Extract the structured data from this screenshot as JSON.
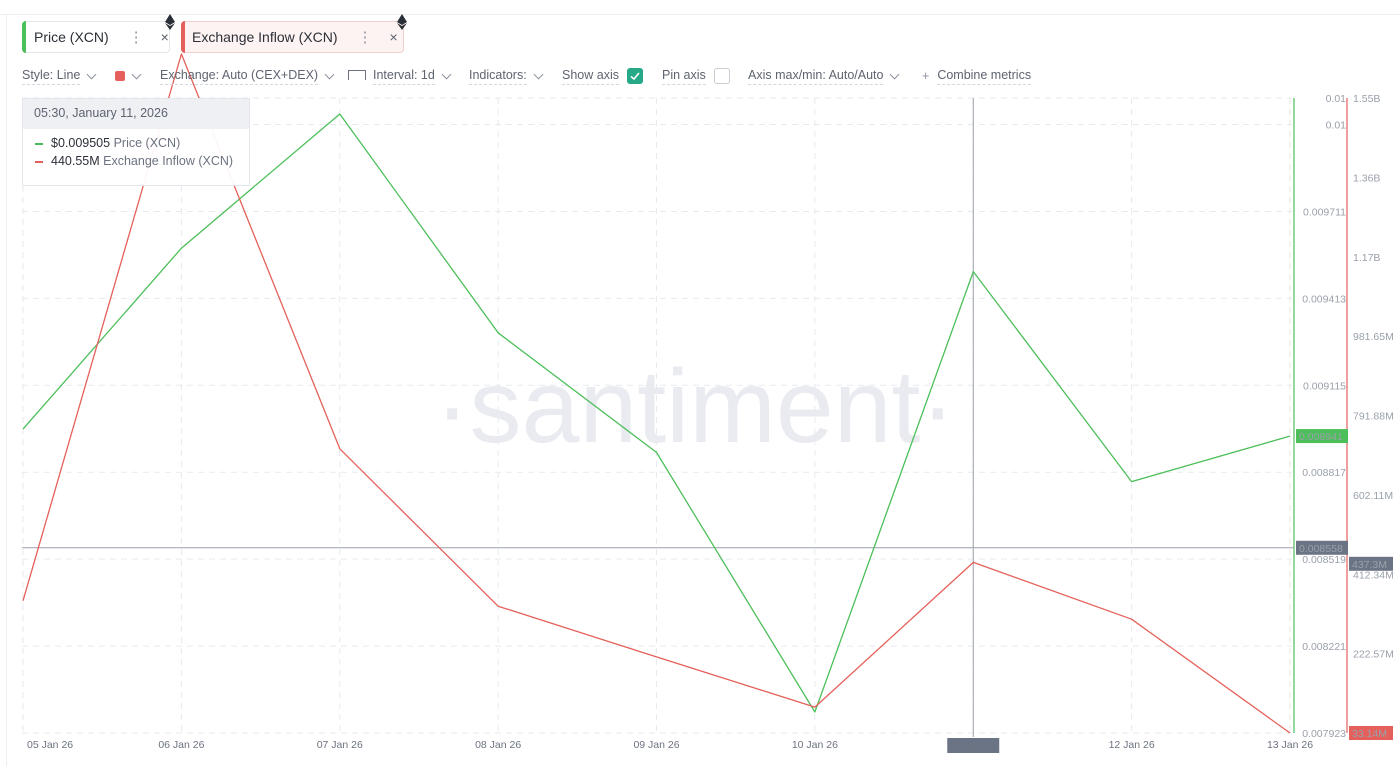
{
  "metric_tabs": [
    {
      "label": "Price (XCN)",
      "color": "#4cbf5a",
      "menu": "⋮",
      "close": "×"
    },
    {
      "label": "Exchange Inflow (XCN)",
      "color": "#e5605a",
      "menu": "⋮",
      "close": "×"
    }
  ],
  "toolbar": {
    "style": "Style: Line",
    "exchange": "Exchange: Auto (CEX+DEX)",
    "interval": "Interval: 1d",
    "indicators": "Indicators:",
    "show_axis": "Show axis",
    "pin_axis": "Pin axis",
    "axis_maxmin": "Axis max/min: Auto/Auto",
    "combine": "Combine metrics",
    "combine_prefix": "+",
    "swatch_color": "#e5605a"
  },
  "tooltip": {
    "date": "05:30, January 11, 2026",
    "rows": [
      {
        "value": "$0.009505",
        "label": "Price (XCN)",
        "color": "#4cbf5a"
      },
      {
        "value": "440.55M",
        "label": "Exchange Inflow (XCN)",
        "color": "#e5605a"
      }
    ]
  },
  "watermark": "·santiment·",
  "chart_data": {
    "type": "line",
    "title": "",
    "xlabel": "",
    "ylabel": "",
    "grid": true,
    "categories": [
      "05 Jan 26",
      "06 Jan 26",
      "07 Jan 26",
      "08 Jan 26",
      "09 Jan 26",
      "10 Jan 26",
      "11 Jan 26",
      "12 Jan 26",
      "13 Jan 26"
    ],
    "series": [
      {
        "name": "Price (XCN)",
        "axis": "left",
        "color": "#4cbf5a",
        "values": [
          0.008965,
          0.009585,
          0.010045,
          0.009295,
          0.008885,
          0.007995,
          0.009505,
          0.008785,
          0.008941
        ]
      },
      {
        "name": "Exchange Inflow (XCN)",
        "axis": "right",
        "color": "#e5605a",
        "values": [
          349000000,
          1655000000,
          712000000,
          336000000,
          215000000,
          95000000,
          440550000,
          305000000,
          33140000
        ]
      }
    ],
    "price_axis": {
      "min": 0.007923,
      "max": 0.0101,
      "ticks": [
        {
          "value": 0.0101,
          "label": "0.01"
        },
        {
          "value": 0.010009,
          "label": "0.01"
        },
        {
          "value": 0.009711,
          "label": "0.009711"
        },
        {
          "value": 0.009413,
          "label": "0.009413"
        },
        {
          "value": 0.009115,
          "label": "0.009115"
        },
        {
          "value": 0.008817,
          "label": "0.008817"
        },
        {
          "value": 0.008519,
          "label": "0.008519"
        },
        {
          "value": 0.008221,
          "label": "0.008221"
        },
        {
          "value": 0.007923,
          "label": "0.007923"
        }
      ]
    },
    "inflow_axis": {
      "min": 33140000,
      "max": 1550000000,
      "ticks": [
        {
          "value": 1550000000,
          "label": "1.55B"
        },
        {
          "value": 1360000000,
          "label": "1.36B"
        },
        {
          "value": 1170000000,
          "label": "1.17B"
        },
        {
          "value": 981650000,
          "label": "981.65M"
        },
        {
          "value": 791880000,
          "label": "791.88M"
        },
        {
          "value": 602110000,
          "label": "602.11M"
        },
        {
          "value": 412340000,
          "label": "412.34M"
        },
        {
          "value": 222570000,
          "label": "222.57M"
        },
        {
          "value": 33140000,
          "label": "33.14M"
        }
      ]
    },
    "badges": {
      "price_last": {
        "value": 0.008941,
        "label": "0.008941",
        "color": "#4cbf5a"
      },
      "inflow_last": {
        "value": 33140000,
        "label": "33.14M",
        "color": "#e5605a"
      },
      "crosshair_price": {
        "value": 0.008558,
        "label": "0.008558",
        "color": "#6b7484"
      },
      "crosshair_inflow": {
        "value": 437300000,
        "label": "437.3M",
        "color": "#6b7484"
      }
    },
    "crosshair": {
      "category": "11 Jan 26",
      "label": "11 Jan 26"
    }
  }
}
